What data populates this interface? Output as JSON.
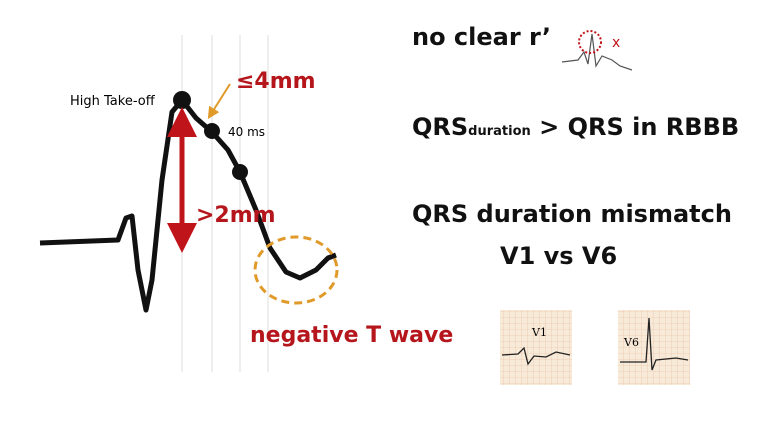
{
  "ecg_annotations": {
    "high_takeoff": "High Take-off",
    "slope": "≤4mm",
    "time_point": "40 ms",
    "elevation": ">2mm",
    "t_wave": "negative T wave"
  },
  "criteria": {
    "no_r_prime": "no clear r’",
    "r_prime_mark": "x",
    "duration_base": "QRS",
    "duration_sub": "duration",
    "duration_rest": " > QRS in RBBB",
    "mismatch": "QRS duration mismatch",
    "leads": "V1 vs V6"
  },
  "thumbnails": [
    "V1",
    "V6"
  ]
}
